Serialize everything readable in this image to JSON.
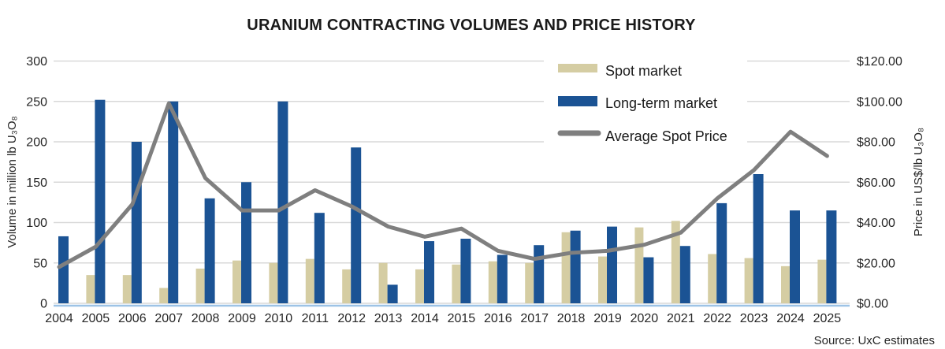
{
  "title": "URANIUM CONTRACTING VOLUMES AND PRICE HISTORY",
  "source": "Source: UxC estimates",
  "left_axis": {
    "title": "Volume in million lb U₃O₈",
    "ticks": [
      0,
      50,
      100,
      150,
      200,
      250,
      300
    ],
    "max": 300
  },
  "right_axis": {
    "title": "Price in US$/lb U₃O₈",
    "tick_labels": [
      "$0.00",
      "$20.00",
      "$40.00",
      "$60.00",
      "$80.00",
      "$100.00",
      "$120.00"
    ],
    "max": 120
  },
  "colors": {
    "spot_bar": "#d5cda3",
    "long_term_bar": "#1b5394",
    "price_line": "#7f7f7f",
    "gridline": "#d9d9d9",
    "x_axis_line": "#9dc3e6",
    "text": "#262626"
  },
  "chart_data": {
    "type": "bar",
    "subtype": "grouped bars with overlaid line",
    "title": "URANIUM CONTRACTING VOLUMES AND PRICE HISTORY",
    "xlabel": "",
    "ylabel_left": "Volume in million lb U₃O₈",
    "ylabel_right": "Price in US$/lb U₃O₈",
    "left_ylim": [
      0,
      300
    ],
    "right_ylim": [
      0,
      120
    ],
    "grid": true,
    "legend_position": "top-right-inside",
    "categories": [
      "2004",
      "2005",
      "2006",
      "2007",
      "2008",
      "2009",
      "2010",
      "2011",
      "2012",
      "2013",
      "2014",
      "2015",
      "2016",
      "2017",
      "2018",
      "2019",
      "2020",
      "2021",
      "2022",
      "2023",
      "2024",
      "2025"
    ],
    "series": [
      {
        "name": "Spot market",
        "type": "bar",
        "axis": "left",
        "color": "#d5cda3",
        "values": [
          0,
          35,
          35,
          19,
          43,
          53,
          50,
          55,
          42,
          50,
          42,
          48,
          52,
          50,
          88,
          58,
          94,
          102,
          61,
          56,
          46,
          54
        ]
      },
      {
        "name": "Long-term market",
        "type": "bar",
        "axis": "left",
        "color": "#1b5394",
        "values": [
          83,
          252,
          200,
          250,
          130,
          150,
          250,
          112,
          193,
          23,
          77,
          80,
          60,
          72,
          90,
          95,
          57,
          71,
          124,
          160,
          115,
          115
        ]
      },
      {
        "name": "Average Spot Price",
        "type": "line",
        "axis": "right",
        "color": "#7f7f7f",
        "values": [
          18,
          28,
          49,
          99,
          62,
          46,
          46,
          56,
          48,
          38,
          33,
          37,
          26,
          22,
          25,
          26,
          29,
          35,
          52,
          66,
          85,
          73
        ]
      }
    ]
  }
}
